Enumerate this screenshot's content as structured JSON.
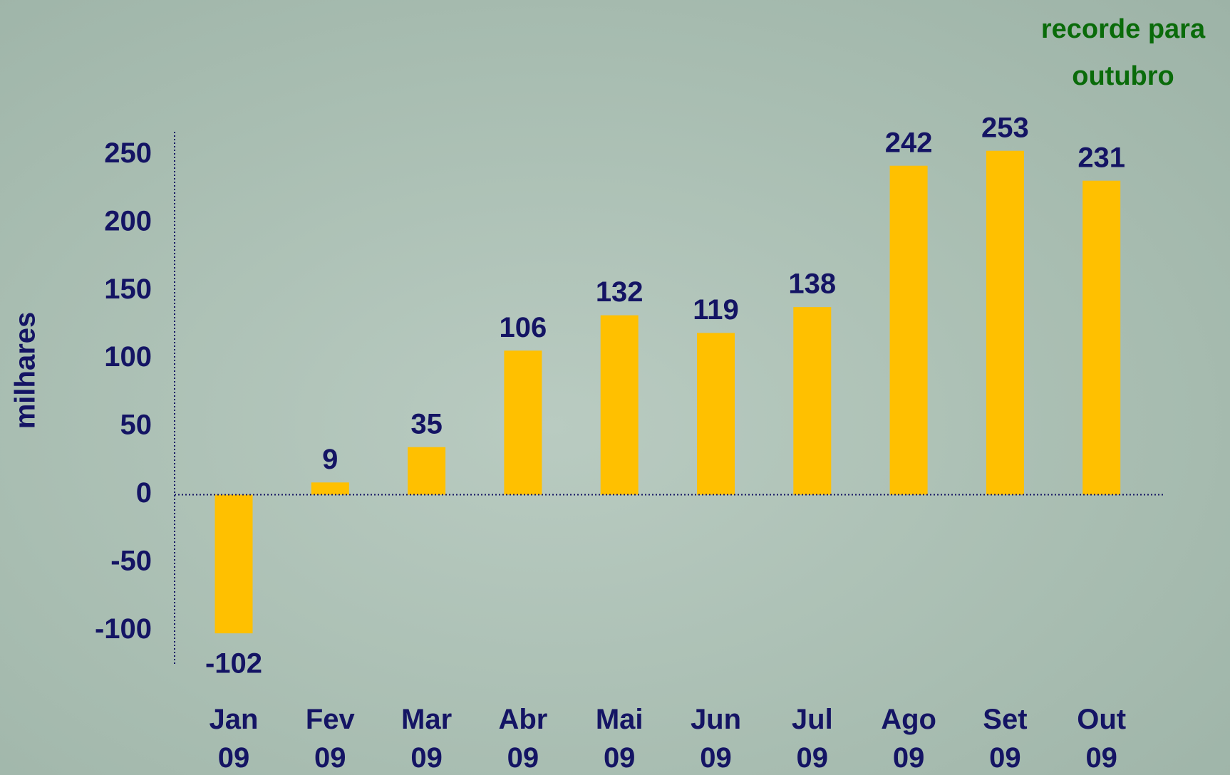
{
  "chart_data": {
    "type": "bar",
    "y_label": "milhares",
    "annotation": "recorde para outubro",
    "categories": [
      "Jan 09",
      "Fev 09",
      "Mar 09",
      "Abr 09",
      "Mai 09",
      "Jun 09",
      "Jul 09",
      "Ago 09",
      "Set 09",
      "Out 09"
    ],
    "values": [
      -102,
      9,
      35,
      106,
      132,
      119,
      138,
      242,
      253,
      231
    ],
    "color": "#ffc000",
    "ylim": [
      -125,
      267
    ],
    "yticks": [
      -100,
      -50,
      0,
      50,
      100,
      150,
      200,
      250
    ],
    "grid": false
  }
}
